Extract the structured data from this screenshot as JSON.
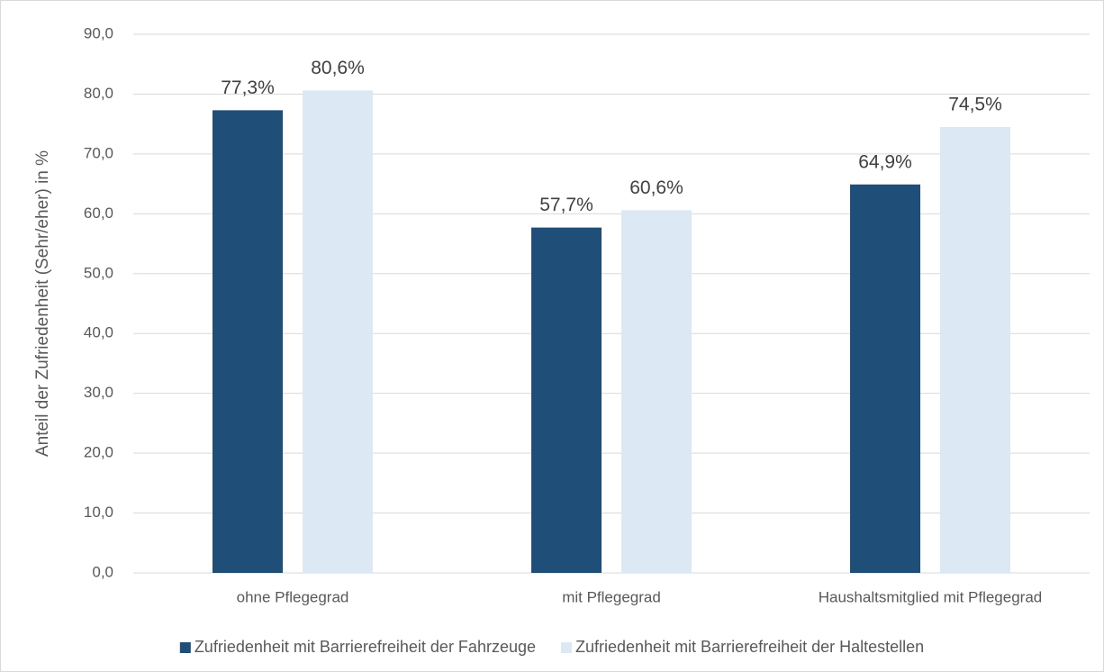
{
  "chart_data": {
    "type": "bar",
    "y_label": "Anteil der Zufriedenheit  (Sehr/eher) in %",
    "categories": [
      "ohne Pflegegrad",
      "mit Pflegegrad",
      "Haushaltsmitglied mit Pflegegrad"
    ],
    "series": [
      {
        "name": "Zufriedenheit mit Barrierefreiheit der Fahrzeuge",
        "color": "#1f4e79",
        "values": [
          77.3,
          57.7,
          64.9
        ],
        "value_labels": [
          "77,3%",
          "57,7%",
          "64,9%"
        ]
      },
      {
        "name": "Zufriedenheit mit Barrierefreiheit der Haltestellen",
        "color": "#dde8f5",
        "values": [
          80.6,
          60.6,
          74.5
        ],
        "value_labels": [
          "80,6%",
          "60,6%",
          "74,5%"
        ]
      }
    ],
    "ylim": [
      0,
      90
    ],
    "yticks": [
      {
        "value": 0,
        "label": "0,0"
      },
      {
        "value": 10,
        "label": "10,0"
      },
      {
        "value": 20,
        "label": "20,0"
      },
      {
        "value": 30,
        "label": "30,0"
      },
      {
        "value": 40,
        "label": "40,0"
      },
      {
        "value": 50,
        "label": "50,0"
      },
      {
        "value": 60,
        "label": "60,0"
      },
      {
        "value": 70,
        "label": "70,0"
      },
      {
        "value": 80,
        "label": "80,0"
      },
      {
        "value": 90,
        "label": "90,0"
      }
    ],
    "grid": true,
    "legend": "bottom"
  }
}
